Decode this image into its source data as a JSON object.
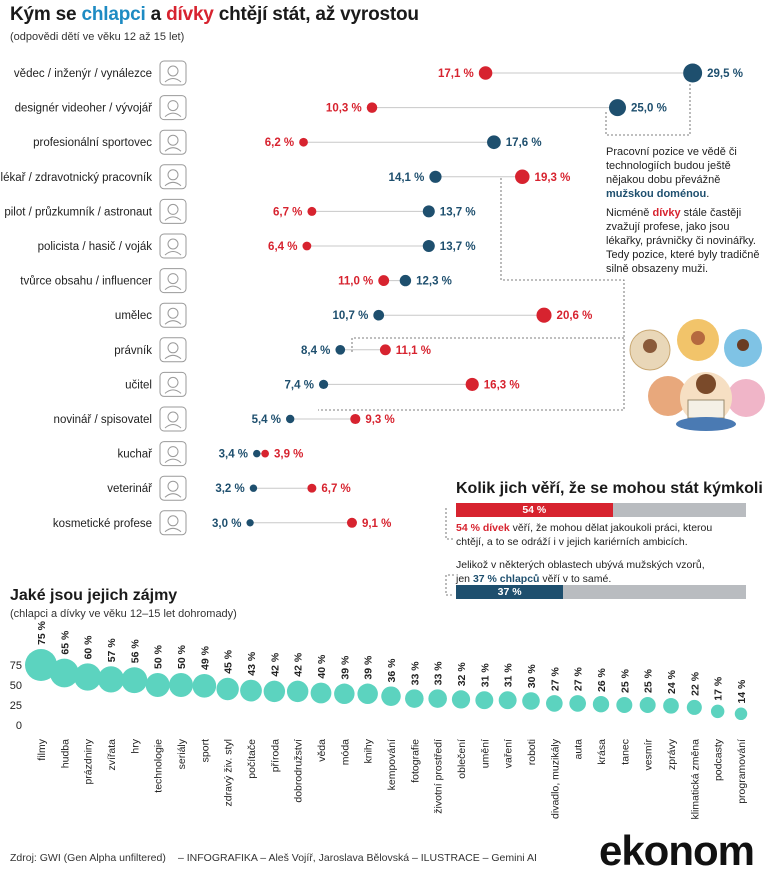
{
  "title_parts": {
    "p1": "Kým se ",
    "p2": "chlapci",
    "p3": " a ",
    "p4": "dívky",
    "p5": " chtějí stát, až vyrostou"
  },
  "subtitle": "(odpovědi dětí ve věku 12 až 15 let)",
  "colors": {
    "boys": "#1e4f6e",
    "girls": "#d7232f",
    "bubble": "#5cd3bf",
    "track": "#b9bcc0"
  },
  "chart_data": [
    {
      "type": "scatter",
      "title": "Kým se chlapci a dívky chtějí stát, až vyrostou",
      "series": [
        {
          "name": "chlapci"
        },
        {
          "name": "dívky"
        }
      ],
      "categories": [
        "vědec / inženýr / vynálezce",
        "designér videoher / vývojář",
        "profesionální sportovec",
        "lékař / zdravotnický pracovník",
        "pilot / průzkumník / astronaut",
        "policista / hasič / voják",
        "tvůrce obsahu / influencer",
        "umělec",
        "právník",
        "učitel",
        "novinář / spisovatel",
        "kuchař",
        "veterinář",
        "kosmetické profese"
      ],
      "rows": [
        {
          "label": "vědec / inženýr / vynálezce",
          "icon": "scientist-icon",
          "boys": 29.5,
          "girls": 17.1,
          "boys_label": "29,5 %",
          "girls_label": "17,1 %"
        },
        {
          "label": "designér videoher / vývojář",
          "icon": "gamepad-icon",
          "boys": 25.0,
          "girls": 10.3,
          "boys_label": "25,0 %",
          "girls_label": "10,3 %"
        },
        {
          "label": "profesionální sportovec",
          "icon": "soccer-ball-icon",
          "boys": 17.6,
          "girls": 6.2,
          "boys_label": "17,6 %",
          "girls_label": "6,2 %"
        },
        {
          "label": "lékař / zdravotnický pracovník",
          "icon": "doctor-icon",
          "boys": 14.1,
          "girls": 19.3,
          "boys_label": "14,1 %",
          "girls_label": "19,3 %"
        },
        {
          "label": "pilot / průzkumník / astronaut",
          "icon": "airplane-icon",
          "boys": 13.7,
          "girls": 6.7,
          "boys_label": "13,7 %",
          "girls_label": "6,7 %"
        },
        {
          "label": "policista / hasič / voják",
          "icon": "police-icon",
          "boys": 13.7,
          "girls": 6.4,
          "boys_label": "13,7 %",
          "girls_label": "6,4 %"
        },
        {
          "label": "tvůrce obsahu / influencer",
          "icon": "smartphone-icon",
          "boys": 12.3,
          "girls": 11.0,
          "boys_label": "12,3 %",
          "girls_label": "11,0 %"
        },
        {
          "label": "umělec",
          "icon": "music-notes-icon",
          "boys": 10.7,
          "girls": 20.6,
          "boys_label": "10,7 %",
          "girls_label": "20,6 %"
        },
        {
          "label": "právník",
          "icon": "scales-icon",
          "boys": 8.4,
          "girls": 11.1,
          "boys_label": "8,4 %",
          "girls_label": "11,1 %"
        },
        {
          "label": "učitel",
          "icon": "blackboard-icon",
          "boys": 7.4,
          "girls": 16.3,
          "boys_label": "7,4 %",
          "girls_label": "16,3 %"
        },
        {
          "label": "novinář / spisovatel",
          "icon": "journalist-icon",
          "boys": 5.4,
          "girls": 9.3,
          "boys_label": "5,4 %",
          "girls_label": "9,3 %"
        },
        {
          "label": "kuchař",
          "icon": "chef-icon",
          "boys": 3.4,
          "girls": 3.9,
          "boys_label": "3,4 %",
          "girls_label": "3,9 %"
        },
        {
          "label": "veterinář",
          "icon": "paw-icon",
          "boys": 3.2,
          "girls": 6.7,
          "boys_label": "3,2 %",
          "girls_label": "6,7 %"
        },
        {
          "label": "kosmetické profese",
          "icon": "cosmetics-icon",
          "boys": 3.0,
          "girls": 9.1,
          "boys_label": "3,0 %",
          "girls_label": "9,1 %"
        }
      ]
    },
    {
      "type": "bar",
      "title": "Kolik jich věří, že se mohou stát kýmkoli",
      "categories": [
        "dívky",
        "chlapci"
      ],
      "values": [
        54,
        37
      ],
      "labels": [
        "54 %",
        "37 %"
      ],
      "xlim": [
        0,
        100
      ]
    },
    {
      "type": "scatter",
      "title": "Jaké jsou jejich zájmy",
      "subtitle": "(chlapci a dívky ve věku 12–15 let dohromady)",
      "ylim": [
        0,
        75
      ],
      "y_ticks": [
        "0",
        "25",
        "50",
        "75"
      ],
      "categories": [
        "filmy",
        "hudba",
        "prázdniny",
        "zvířata",
        "hry",
        "technologie",
        "seriály",
        "sport",
        "zdravý živ. styl",
        "počítače",
        "příroda",
        "dobrodružství",
        "věda",
        "móda",
        "knihy",
        "kempování",
        "fotografie",
        "životní prostředí",
        "oblečení",
        "umění",
        "vaření",
        "roboti",
        "divadlo, muzikály",
        "auta",
        "krása",
        "tanec",
        "vesmír",
        "zprávy",
        "klimatická změna",
        "podcasty",
        "programování"
      ],
      "values": [
        75,
        65,
        60,
        57,
        56,
        50,
        50,
        49,
        45,
        43,
        42,
        42,
        40,
        39,
        39,
        36,
        33,
        33,
        32,
        31,
        31,
        30,
        27,
        27,
        26,
        25,
        25,
        24,
        22,
        17,
        14
      ],
      "labels": [
        "75 %",
        "65 %",
        "60 %",
        "57 %",
        "56 %",
        "50 %",
        "50 %",
        "49 %",
        "45 %",
        "43 %",
        "42 %",
        "42 %",
        "40 %",
        "39 %",
        "39 %",
        "36 %",
        "33 %",
        "33 %",
        "32 %",
        "31 %",
        "31 %",
        "30 %",
        "27 %",
        "27 %",
        "26 %",
        "25 %",
        "25 %",
        "24 %",
        "22 %",
        "17 %",
        "14 %"
      ]
    }
  ],
  "note1": {
    "line1": "Pracovní pozice ve vědě či",
    "line2": "technologiích budou ještě",
    "line3": "nějakou dobu převážně",
    "line4_bold": "mužskou doménou",
    "line4_end": "."
  },
  "note2": {
    "a": "Nicméně ",
    "b": "dívky",
    "c": " stále častěji",
    "line2": "zvažují profese, jako jsou",
    "line3": "lékařky, právničky či novinářky.",
    "line4": "Tedy pozice, které byly tradičně",
    "line5": "silně obsazeny muži."
  },
  "belief": {
    "title": "Kolik jich věří, že se mohou stát kýmkoli",
    "girls_bold": "54 % dívek",
    "girls_text1": " věří, že mohou dělat jakoukoli práci, kterou",
    "girls_text2": "chtějí, a to se odráží i v jejich kariérních ambicích.",
    "boys_text1": "Jelikož v některých oblastech ubývá mužských vzorů,",
    "boys_pre": "jen ",
    "boys_bold": "37 % chlapců",
    "boys_post": " věří v to samé."
  },
  "interests": {
    "title": "Jaké jsou jejich zájmy",
    "subtitle": "(chlapci a dívky ve věku 12–15 let dohromady)"
  },
  "footer": {
    "source": "Zdroj: GWI (Gen Alpha unfiltered)",
    "credits": "– INFOGRAFIKA –  Aleš Vojíř, Jaroslava Bělovská   – ILUSTRACE – Gemini AI",
    "logo": "ekonom"
  }
}
